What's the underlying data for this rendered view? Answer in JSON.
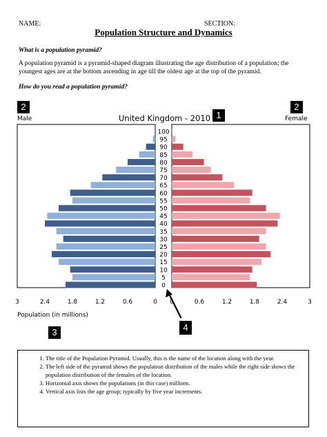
{
  "header": {
    "name_label": "NAME:",
    "section_label": "SECTION:"
  },
  "title": "Population Structure and Dynamics",
  "question1": "What is a population pyramid?",
  "paragraph": "A population pyramid is a pyramid-shaped diagram illustrating the age distribution of a population; the youngest ages are at the bottom ascending in age till the oldest age at the top of the pyramid.",
  "question2": "How do you read a population pyramid?",
  "badges": {
    "b1": "1",
    "b2_left": "2",
    "b2_right": "2",
    "b3": "3",
    "b4": "4"
  },
  "colors": {
    "male_dark": "#3e5f8a",
    "male_light": "#8fb0d8",
    "female_dark": "#c4535e",
    "female_light": "#eda7ad"
  },
  "chart_data": {
    "type": "bar",
    "title": "United Kingdom - 2010",
    "left_label": "Male",
    "right_label": "Female",
    "xlabel": "Population (in millions)",
    "x_ticks_left": [
      "3",
      "2.4",
      "1.8",
      "1.2",
      "0.6",
      "0"
    ],
    "x_ticks_right": [
      "0",
      "0.6",
      "1.2",
      "1.8",
      "2.4",
      "3"
    ],
    "xlim": [
      0,
      3
    ],
    "age_groups": [
      "0",
      "5",
      "10",
      "15",
      "20",
      "25",
      "30",
      "35",
      "40",
      "45",
      "50",
      "55",
      "60",
      "65",
      "70",
      "75",
      "80",
      "85",
      "90",
      "95",
      "100"
    ],
    "series": [
      {
        "name": "Male",
        "values": [
          1.95,
          1.8,
          1.85,
          2.1,
          2.25,
          2.15,
          2.0,
          2.15,
          2.4,
          2.35,
          2.1,
          1.8,
          1.85,
          1.4,
          1.15,
          0.85,
          0.6,
          0.35,
          0.2,
          0.05,
          0.01
        ]
      },
      {
        "name": "Female",
        "values": [
          1.85,
          1.7,
          1.75,
          1.95,
          2.15,
          2.05,
          1.9,
          2.05,
          2.3,
          2.35,
          2.05,
          1.7,
          1.75,
          1.35,
          1.1,
          0.85,
          0.7,
          0.45,
          0.25,
          0.08,
          0.01
        ]
      }
    ]
  },
  "legend_items": [
    "The title of the Population Pyramid. Usually, this is the name of the location along with the year.",
    "The left side of the pyramid shows the population distribution of the males while the right side shows the population distribution of the females of the location.",
    "Horizontal axis shows the populations (in this case) millions.",
    "Vertical axis lists the age group; typically by five year increments."
  ]
}
